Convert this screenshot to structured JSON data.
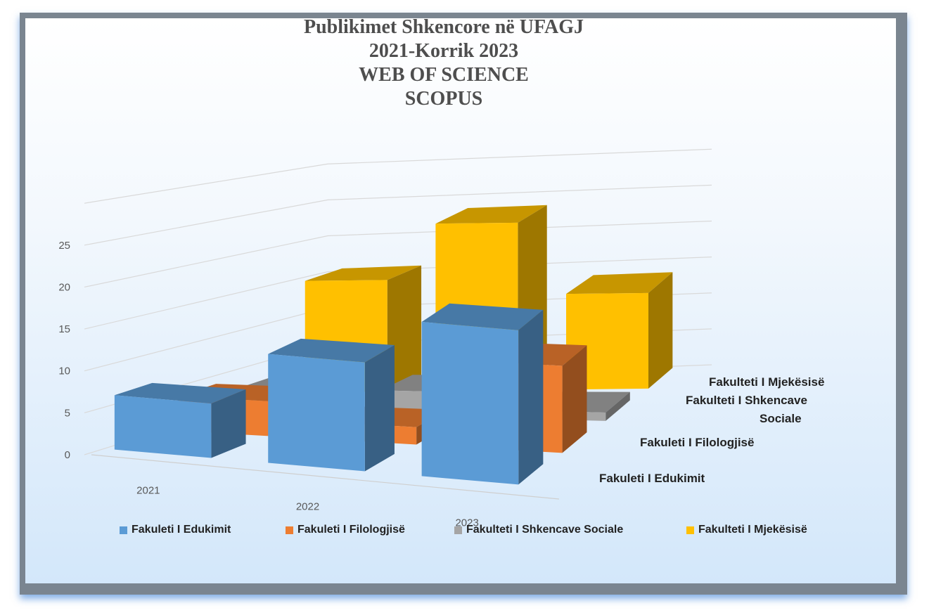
{
  "chart_data": {
    "type": "bar",
    "title_lines": [
      "Publikimet Shkencore në UFAGJ",
      "2021-Korrik 2023",
      "WEB OF SCIENCE",
      "SCOPUS"
    ],
    "categories": [
      "2021",
      "2022",
      "2023"
    ],
    "series": [
      {
        "name": "Fakuleti I Edukimit",
        "values": [
          6,
          12,
          17
        ],
        "color": "#5b9bd5"
      },
      {
        "name": "Fakuleti I Filologjisë",
        "values": [
          4,
          2,
          10
        ],
        "color": "#ed7d31"
      },
      {
        "name": "Fakulteti I Shkencave Sociale",
        "values": [
          3,
          3,
          1
        ],
        "color": "#a5a5a5"
      },
      {
        "name": "Fakulteti I Mjekësisë",
        "values": [
          14,
          21,
          12
        ],
        "color": "#ffc000"
      }
    ],
    "depth_labels": [
      [
        "Fakuleti I Edukimit"
      ],
      [
        "Fakuleti I Filologjisë"
      ],
      [
        "Fakulteti I Shkencave",
        "Sociale"
      ],
      [
        "Fakulteti I Mjekësisë"
      ]
    ],
    "y_ticks": [
      "0",
      "5",
      "10",
      "15",
      "20",
      "25"
    ],
    "ylim": [
      0,
      25
    ],
    "grid": true,
    "legend_position": "bottom"
  }
}
